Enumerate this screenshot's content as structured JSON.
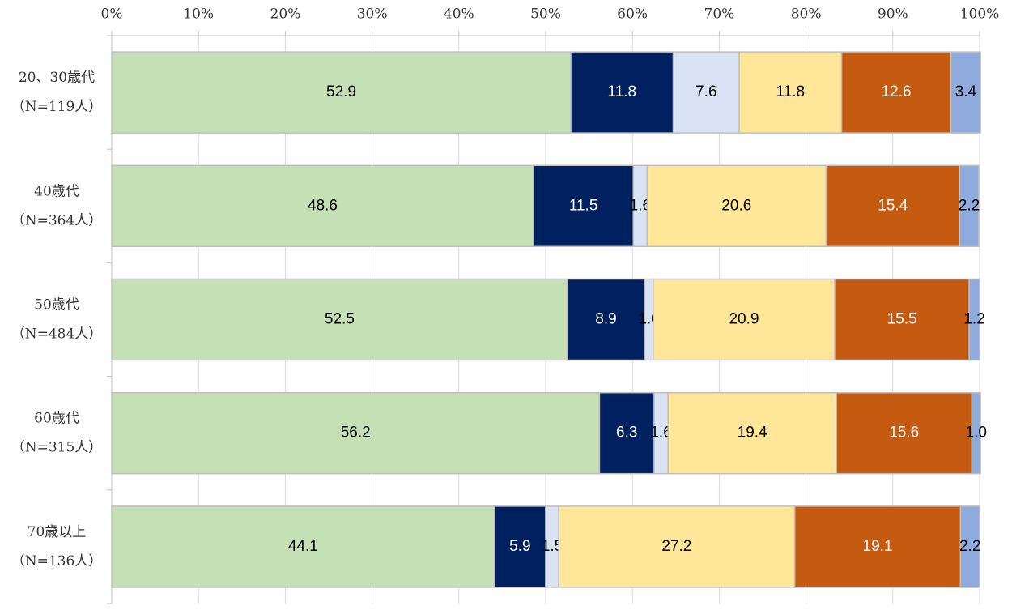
{
  "chart_data": {
    "type": "stacked-barh",
    "categories": [
      [
        "20、30歳代",
        "（N=119人）"
      ],
      [
        "40歳代",
        "（N=364人）"
      ],
      [
        "50歳代",
        "（N=484人）"
      ],
      [
        "60歳代",
        "（N=315人）"
      ],
      [
        "70歳以上",
        "（N=136人）"
      ]
    ],
    "series": [
      {
        "color": "#c5e0b4",
        "values": [
          52.9,
          48.6,
          52.5,
          56.2,
          44.1
        ],
        "value_labels": [
          "52.9",
          "48.6",
          "52.5",
          "56.2",
          "44.1"
        ]
      },
      {
        "color": "#002060",
        "values": [
          11.8,
          11.5,
          8.9,
          6.3,
          5.9
        ],
        "value_labels": [
          "11.8",
          "11.5",
          "8.9",
          "6.3",
          "5.9"
        ]
      },
      {
        "color": "#dae3f3",
        "values": [
          7.6,
          1.6,
          1.0,
          1.6,
          1.5
        ],
        "value_labels": [
          "7.6",
          "1.6",
          "1.0",
          "1.6",
          "1.5"
        ]
      },
      {
        "color": "#ffe699",
        "values": [
          11.8,
          20.6,
          20.9,
          19.4,
          27.2
        ],
        "value_labels": [
          "11.8",
          "20.6",
          "20.9",
          "19.4",
          "27.2"
        ]
      },
      {
        "color": "#c55a11",
        "values": [
          12.6,
          15.4,
          15.5,
          15.6,
          19.1
        ],
        "value_labels": [
          "12.6",
          "15.4",
          "15.5",
          "15.6",
          "19.1"
        ]
      },
      {
        "color": "#8faadc",
        "values": [
          3.4,
          2.2,
          1.2,
          1.0,
          2.2
        ],
        "value_labels": [
          "3.4",
          "2.2",
          "1.2",
          "1.0",
          "2.2"
        ]
      }
    ],
    "xlim": [
      0,
      100
    ],
    "xticks": [
      {
        "value": 0,
        "label": "0%"
      },
      {
        "value": 10,
        "label": "10%"
      },
      {
        "value": 20,
        "label": "20%"
      },
      {
        "value": 30,
        "label": "30%"
      },
      {
        "value": 40,
        "label": "40%"
      },
      {
        "value": 50,
        "label": "50%"
      },
      {
        "value": 60,
        "label": "60%"
      },
      {
        "value": 70,
        "label": "70%"
      },
      {
        "value": 80,
        "label": "80%"
      },
      {
        "value": 90,
        "label": "90%"
      },
      {
        "value": 100,
        "label": "100%"
      }
    ],
    "grid": true
  }
}
